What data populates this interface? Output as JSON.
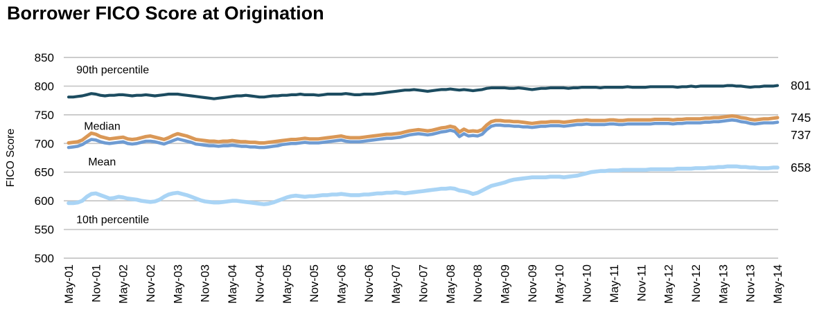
{
  "title": "Borrower FICO Score at Origination",
  "colors": {
    "p90_line": "#1c4c60",
    "median_line": "#da9857",
    "mean_line": "#6e9bd2",
    "p10_line": "#a9d4f5",
    "grid": "#c5c5c5",
    "text": "#000000",
    "background": "#ffffff"
  },
  "chart_data": {
    "type": "line",
    "title": "Borrower FICO Score at Origination",
    "xlabel": "",
    "ylabel": "FICO Score",
    "ylim": [
      500,
      850
    ],
    "y_ticks": [
      850,
      800,
      750,
      700,
      650,
      600,
      550,
      500
    ],
    "grid": "horizontal-only",
    "legend_position": "inline-annotations",
    "x_unit": "monthly points from May-2001 to May-2014",
    "x_tick_every": 6,
    "x_tick_labels": [
      "May-01",
      "Nov-01",
      "May-02",
      "Nov-02",
      "May-03",
      "Nov-03",
      "May-04",
      "Nov-04",
      "May-05",
      "Nov-05",
      "May-06",
      "Nov-06",
      "May-07",
      "Nov-07",
      "May-08",
      "Nov-08",
      "May-09",
      "Nov-09",
      "May-10",
      "Nov-10",
      "May-11",
      "Nov-11",
      "May-12",
      "Nov-12",
      "May-13",
      "Nov-13",
      "May-14"
    ],
    "annotations": [
      {
        "label": "90th percentile",
        "month": 1.7,
        "value": 822
      },
      {
        "label": "Median",
        "month": 3.4,
        "value": 724
      },
      {
        "label": "Mean",
        "month": 4.3,
        "value": 662
      },
      {
        "label": "10th percentile",
        "month": 1.7,
        "value": 561
      }
    ],
    "series": [
      {
        "name": "90th percentile",
        "color": "#1c4c60",
        "end_label": "801",
        "values": [
          781,
          781,
          782,
          783,
          785,
          787,
          786,
          784,
          783,
          784,
          784,
          785,
          785,
          784,
          783,
          784,
          784,
          785,
          784,
          783,
          784,
          785,
          786,
          786,
          786,
          785,
          784,
          783,
          782,
          781,
          780,
          779,
          778,
          779,
          780,
          781,
          782,
          783,
          783,
          784,
          783,
          782,
          781,
          781,
          782,
          783,
          783,
          784,
          784,
          785,
          785,
          786,
          785,
          785,
          785,
          784,
          785,
          786,
          786,
          786,
          786,
          787,
          786,
          785,
          785,
          786,
          786,
          786,
          787,
          788,
          789,
          790,
          791,
          792,
          793,
          793,
          794,
          793,
          792,
          791,
          792,
          793,
          794,
          794,
          795,
          794,
          793,
          794,
          793,
          792,
          793,
          794,
          796,
          797,
          797,
          797,
          797,
          796,
          796,
          797,
          796,
          795,
          794,
          795,
          796,
          796,
          797,
          797,
          797,
          797,
          796,
          797,
          797,
          798,
          798,
          798,
          798,
          797,
          798,
          798,
          798,
          798,
          798,
          799,
          798,
          798,
          798,
          798,
          799,
          799,
          799,
          799,
          799,
          799,
          798,
          799,
          799,
          800,
          799,
          800,
          800,
          800,
          800,
          800,
          800,
          801,
          801,
          800,
          800,
          799,
          798,
          799,
          799,
          800,
          800,
          800,
          801
        ]
      },
      {
        "name": "Median",
        "color": "#da9857",
        "end_label": "745",
        "values": [
          701,
          702,
          703,
          706,
          712,
          718,
          716,
          712,
          710,
          708,
          709,
          710,
          711,
          708,
          707,
          708,
          710,
          712,
          713,
          711,
          709,
          707,
          710,
          714,
          717,
          715,
          713,
          710,
          707,
          706,
          705,
          704,
          704,
          703,
          704,
          704,
          705,
          704,
          703,
          703,
          702,
          702,
          701,
          701,
          702,
          703,
          704,
          705,
          706,
          707,
          707,
          708,
          709,
          708,
          708,
          708,
          709,
          710,
          711,
          712,
          713,
          711,
          710,
          710,
          710,
          711,
          712,
          713,
          714,
          715,
          716,
          716,
          717,
          718,
          720,
          722,
          723,
          724,
          723,
          722,
          723,
          725,
          727,
          728,
          730,
          728,
          720,
          725,
          721,
          722,
          721,
          724,
          732,
          738,
          740,
          740,
          739,
          739,
          738,
          738,
          737,
          736,
          735,
          736,
          737,
          737,
          738,
          738,
          738,
          737,
          738,
          739,
          740,
          740,
          741,
          740,
          740,
          740,
          740,
          741,
          741,
          740,
          740,
          741,
          741,
          741,
          741,
          741,
          741,
          742,
          742,
          742,
          742,
          741,
          742,
          742,
          743,
          743,
          743,
          743,
          744,
          744,
          745,
          745,
          746,
          747,
          748,
          747,
          745,
          744,
          742,
          741,
          742,
          743,
          743,
          744,
          745
        ]
      },
      {
        "name": "Mean",
        "color": "#6e9bd2",
        "end_label": "737",
        "values": [
          693,
          694,
          695,
          698,
          703,
          707,
          706,
          703,
          701,
          700,
          701,
          702,
          703,
          700,
          699,
          700,
          702,
          704,
          704,
          703,
          701,
          699,
          702,
          705,
          708,
          706,
          704,
          702,
          699,
          698,
          697,
          696,
          696,
          695,
          696,
          696,
          697,
          696,
          695,
          695,
          694,
          694,
          693,
          693,
          694,
          695,
          696,
          698,
          699,
          700,
          700,
          701,
          702,
          701,
          701,
          701,
          702,
          703,
          704,
          705,
          706,
          704,
          703,
          703,
          703,
          704,
          705,
          706,
          707,
          708,
          709,
          709,
          710,
          711,
          713,
          715,
          716,
          717,
          716,
          715,
          716,
          718,
          720,
          721,
          723,
          721,
          712,
          717,
          713,
          714,
          713,
          716,
          724,
          730,
          732,
          732,
          731,
          731,
          730,
          730,
          729,
          729,
          728,
          729,
          730,
          730,
          731,
          731,
          731,
          730,
          731,
          732,
          733,
          733,
          734,
          733,
          733,
          733,
          733,
          734,
          734,
          733,
          733,
          734,
          734,
          734,
          734,
          734,
          734,
          735,
          735,
          735,
          735,
          734,
          735,
          735,
          736,
          736,
          736,
          736,
          737,
          737,
          738,
          738,
          739,
          740,
          741,
          740,
          738,
          737,
          735,
          734,
          735,
          736,
          736,
          736,
          737
        ]
      },
      {
        "name": "10th percentile",
        "color": "#a9d4f5",
        "end_label": "658",
        "values": [
          596,
          596,
          597,
          600,
          607,
          612,
          613,
          610,
          607,
          604,
          605,
          607,
          606,
          604,
          603,
          602,
          600,
          599,
          598,
          599,
          602,
          607,
          611,
          613,
          614,
          612,
          610,
          607,
          604,
          601,
          599,
          598,
          597,
          597,
          598,
          599,
          600,
          600,
          599,
          598,
          597,
          596,
          595,
          594,
          595,
          597,
          600,
          603,
          606,
          608,
          609,
          608,
          607,
          608,
          608,
          609,
          610,
          610,
          611,
          611,
          612,
          611,
          610,
          610,
          610,
          611,
          611,
          612,
          613,
          613,
          614,
          614,
          615,
          614,
          613,
          614,
          615,
          616,
          617,
          618,
          619,
          620,
          621,
          621,
          622,
          621,
          618,
          617,
          615,
          612,
          614,
          618,
          622,
          626,
          628,
          630,
          632,
          635,
          637,
          638,
          639,
          640,
          641,
          641,
          641,
          641,
          642,
          642,
          642,
          641,
          642,
          643,
          644,
          646,
          648,
          650,
          651,
          652,
          652,
          653,
          653,
          653,
          654,
          654,
          654,
          654,
          654,
          654,
          655,
          655,
          655,
          655,
          655,
          655,
          656,
          656,
          656,
          656,
          657,
          657,
          657,
          658,
          658,
          659,
          659,
          660,
          660,
          660,
          659,
          659,
          658,
          658,
          657,
          657,
          657,
          658,
          658
        ]
      }
    ]
  }
}
